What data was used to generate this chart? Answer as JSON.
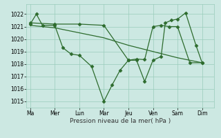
{
  "xlabel": "Pression niveau de la mer( hPa )",
  "bg_color": "#cce8e2",
  "line_color": "#2d6b2d",
  "grid_color": "#99ccbb",
  "ylim": [
    1014.5,
    1022.8
  ],
  "yticks": [
    1015,
    1016,
    1017,
    1018,
    1019,
    1020,
    1021,
    1022
  ],
  "day_labels": [
    "Ma",
    "Mer",
    "Lun",
    "Mar",
    "Jeu",
    "Ven",
    "Sam",
    "Dim"
  ],
  "day_positions": [
    0,
    1,
    2,
    3,
    4,
    5,
    6,
    7
  ],
  "xlim": [
    -0.15,
    7.5
  ],
  "s1_x": [
    0.0,
    0.25,
    0.5,
    1.0,
    1.33,
    1.66,
    2.0,
    2.5,
    3.0,
    3.33,
    3.66,
    4.0,
    4.33,
    4.66,
    5.0,
    5.33,
    5.5,
    5.75,
    6.0,
    6.33,
    6.75,
    7.0
  ],
  "s1_y": [
    1021.2,
    1022.0,
    1021.1,
    1021.1,
    1019.3,
    1018.8,
    1018.7,
    1017.8,
    1015.0,
    1016.3,
    1017.5,
    1018.3,
    1018.3,
    1016.6,
    1018.3,
    1018.6,
    1021.3,
    1021.5,
    1021.6,
    1022.1,
    1019.5,
    1018.1
  ],
  "s2_x": [
    0.0,
    1.0,
    2.0,
    3.0,
    4.0,
    4.33,
    4.66,
    5.0,
    5.33,
    5.66,
    6.0,
    6.5,
    7.0
  ],
  "s2_y": [
    1021.3,
    1021.2,
    1021.2,
    1021.1,
    1018.3,
    1018.4,
    1018.35,
    1021.0,
    1021.1,
    1021.0,
    1021.0,
    1018.1,
    1018.1
  ],
  "s3_x": [
    0.0,
    1.0,
    2.0,
    3.0,
    4.0,
    5.0,
    6.0,
    7.0
  ],
  "s3_y": [
    1021.1,
    1020.9,
    1020.5,
    1020.1,
    1019.5,
    1019.0,
    1018.5,
    1018.1
  ],
  "marker": "D",
  "markersize": 2.5,
  "linewidth": 0.9
}
